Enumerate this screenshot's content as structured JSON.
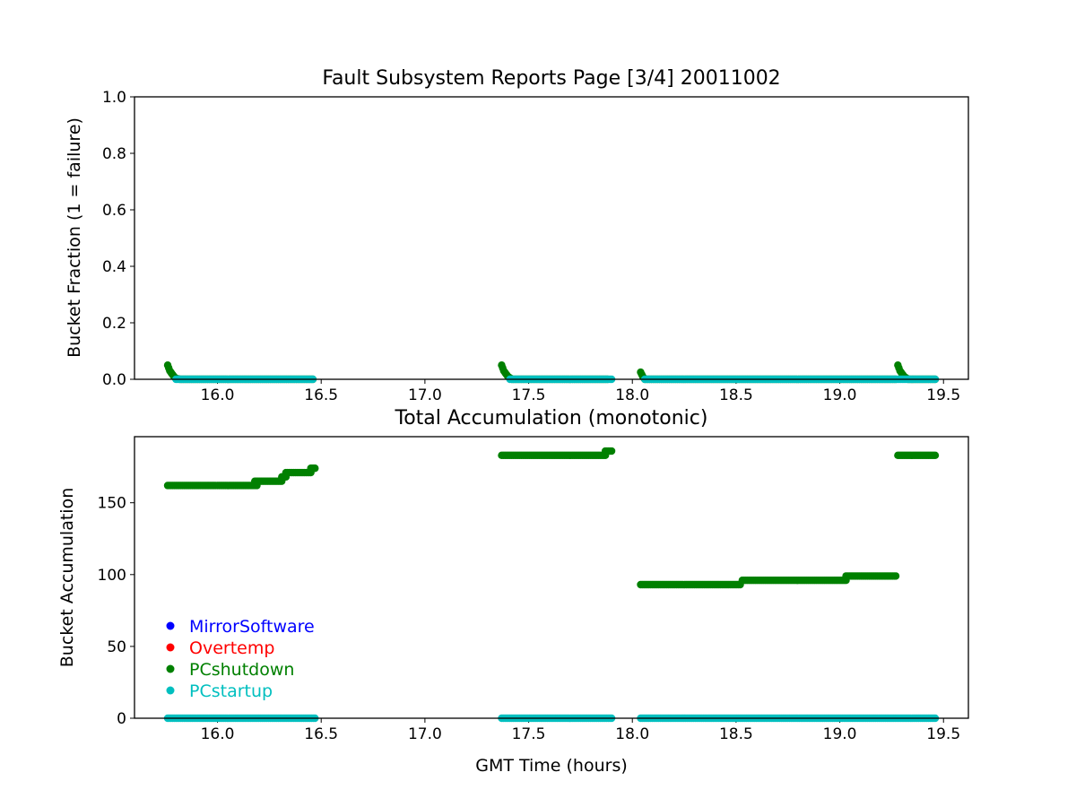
{
  "chart_data": [
    {
      "type": "scatter",
      "title": "Fault Subsystem Reports Page [3/4] 20011002",
      "xlabel": "",
      "ylabel": "Bucket Fraction (1 = failure)",
      "xlim": [
        15.6,
        19.62
      ],
      "ylim": [
        0,
        1
      ],
      "xticks": [
        "16.0",
        "16.5",
        "17.0",
        "17.5",
        "18.0",
        "18.5",
        "19.0",
        "19.5"
      ],
      "yticks": [
        "0.0",
        "0.2",
        "0.4",
        "0.6",
        "0.8",
        "1.0"
      ],
      "grid": false,
      "series": [
        {
          "name": "PCshutdown",
          "color": "#008000",
          "segments": [
            {
              "x": [
                15.76,
                15.77,
                15.78,
                15.79,
                15.8,
                15.82,
                16.0,
                16.2,
                16.46
              ],
              "y": [
                0.05,
                0.03,
                0.02,
                0.01,
                0.003,
                0.0,
                0.0,
                0.0,
                0.0
              ]
            },
            {
              "x": [
                17.37,
                17.38,
                17.39,
                17.4,
                17.42,
                17.6,
                17.88
              ],
              "y": [
                0.05,
                0.03,
                0.02,
                0.01,
                0.0,
                0.0,
                0.0
              ]
            },
            {
              "x": [
                18.04,
                18.05,
                18.06,
                18.5,
                19.0,
                19.27
              ],
              "y": [
                0.025,
                0.01,
                0.0,
                0.0,
                0.0,
                0.0
              ]
            },
            {
              "x": [
                19.28,
                19.29,
                19.3,
                19.31,
                19.33,
                19.46
              ],
              "y": [
                0.05,
                0.03,
                0.02,
                0.01,
                0.0,
                0.0
              ]
            }
          ]
        },
        {
          "name": "PCstartup",
          "color": "#00bfbf",
          "segments": [
            {
              "x": [
                15.8,
                16.46
              ],
              "y": [
                0.0,
                0.0
              ]
            },
            {
              "x": [
                17.41,
                17.9
              ],
              "y": [
                0.0,
                0.0
              ]
            },
            {
              "x": [
                18.06,
                19.46
              ],
              "y": [
                0.0,
                0.0
              ]
            }
          ]
        }
      ]
    },
    {
      "type": "scatter",
      "title": "Total Accumulation (monotonic)",
      "xlabel": "GMT Time (hours)",
      "ylabel": "Bucket Accumulation",
      "xlim": [
        15.6,
        19.62
      ],
      "ylim": [
        0,
        196
      ],
      "xticks": [
        "16.0",
        "16.5",
        "17.0",
        "17.5",
        "18.0",
        "18.5",
        "19.0",
        "19.5"
      ],
      "yticks": [
        "0",
        "50",
        "100",
        "150"
      ],
      "grid": false,
      "legend": {
        "placement": "lower-left",
        "entries": [
          {
            "label": "MirrorSoftware",
            "color": "#0000ff"
          },
          {
            "label": "Overtemp",
            "color": "#ff0000"
          },
          {
            "label": "PCshutdown",
            "color": "#008000"
          },
          {
            "label": "PCstartup",
            "color": "#00bfbf"
          }
        ]
      },
      "series": [
        {
          "name": "PCshutdown",
          "color": "#008000",
          "steps": [
            {
              "x0": 15.76,
              "x1": 15.99,
              "y": 162
            },
            {
              "x0": 16.0,
              "x1": 16.19,
              "y": 162
            },
            {
              "x0": 16.18,
              "x1": 16.31,
              "y": 165
            },
            {
              "x0": 16.31,
              "x1": 16.33,
              "y": 168
            },
            {
              "x0": 16.33,
              "x1": 16.45,
              "y": 171
            },
            {
              "x0": 16.45,
              "x1": 16.47,
              "y": 174
            },
            {
              "x0": 17.37,
              "x1": 17.87,
              "y": 183
            },
            {
              "x0": 17.87,
              "x1": 17.9,
              "y": 186
            },
            {
              "x0": 18.04,
              "x1": 18.52,
              "y": 93
            },
            {
              "x0": 18.53,
              "x1": 19.03,
              "y": 96
            },
            {
              "x0": 19.03,
              "x1": 19.27,
              "y": 99
            },
            {
              "x0": 19.28,
              "x1": 19.46,
              "y": 183
            }
          ]
        },
        {
          "name": "PCstartup",
          "color": "#00bfbf",
          "steps": [
            {
              "x0": 15.76,
              "x1": 16.47,
              "y": 0
            },
            {
              "x0": 17.37,
              "x1": 17.9,
              "y": 0
            },
            {
              "x0": 18.04,
              "x1": 19.46,
              "y": 0
            }
          ]
        }
      ]
    }
  ]
}
